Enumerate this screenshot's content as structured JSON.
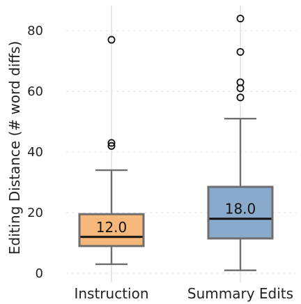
{
  "chart_data": {
    "type": "box",
    "title": "",
    "xlabel": "",
    "ylabel": "Editing Distance (# word diffs)",
    "ylim": [
      -2,
      87
    ],
    "yticks": [
      0,
      20,
      40,
      60,
      80
    ],
    "grid": "horizontal dashed",
    "categories": [
      "Instruction",
      "Summary Edits"
    ],
    "boxes": [
      {
        "name": "Instruction",
        "color": "#F6B77A",
        "whisker_low": 3,
        "q1": 9,
        "median": 12,
        "q3": 19.5,
        "whisker_high": 34,
        "median_label": "12.0",
        "outliers": [
          42,
          43,
          77
        ]
      },
      {
        "name": "Summary Edits",
        "color": "#8AAACB",
        "whisker_low": 1,
        "q1": 11.5,
        "median": 18,
        "q3": 28.5,
        "whisker_high": 51,
        "median_label": "18.0",
        "outliers": [
          58,
          61,
          63,
          73,
          84
        ]
      }
    ]
  }
}
